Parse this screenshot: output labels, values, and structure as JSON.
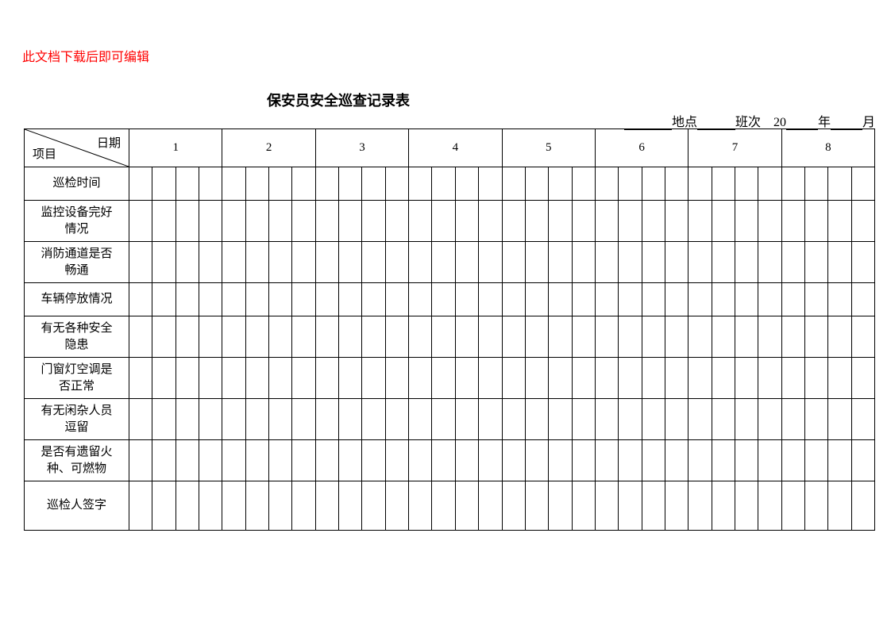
{
  "note": "此文档下载后即可编辑",
  "title": "保安员安全巡查记录表",
  "meta": {
    "location_label": "地点",
    "shift_label": "班次",
    "year_prefix": "20",
    "year_label": "年",
    "month_label": "月"
  },
  "corner": {
    "date_label": "日期",
    "item_label": "项目"
  },
  "date_columns": [
    "1",
    "2",
    "3",
    "4",
    "5",
    "6",
    "7",
    "8"
  ],
  "sub_per_date": 4,
  "row_labels": [
    "巡检时间",
    "监控设备完好情况",
    "消防通道是否畅通",
    "车辆停放情况",
    "有无各种安全隐患",
    "门窗灯空调是否正常",
    "有无闲杂人员逗留",
    "是否有遗留火种、可燃物",
    "巡检人签字"
  ],
  "row_label_wraps": [
    [
      "巡检时间"
    ],
    [
      "监控设备完好",
      "情况"
    ],
    [
      "消防通道是否",
      "畅通"
    ],
    [
      "车辆停放情况"
    ],
    [
      "有无各种安全",
      "隐患"
    ],
    [
      "门窗灯空调是",
      "否正常"
    ],
    [
      "有无闲杂人员",
      "逗留"
    ],
    [
      "是否有遗留火",
      "种、可燃物"
    ],
    [
      "巡检人签字"
    ]
  ],
  "styling": {
    "page_bg": "#ffffff",
    "text_color": "#000000",
    "note_color": "#ff0000",
    "border_color": "#000000",
    "title_fontsize": 18,
    "body_fontsize": 15,
    "corner_cell_width": 132,
    "header_row_height": 48,
    "body_row_height": 48
  }
}
